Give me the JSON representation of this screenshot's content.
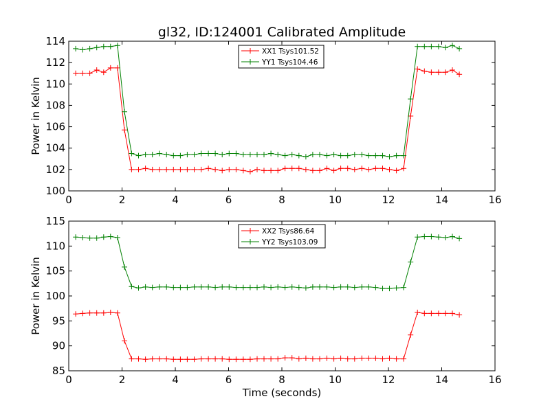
{
  "chart_data": [
    {
      "type": "line",
      "title": "gl32, ID:124001 Calibrated Amplitude",
      "xlabel": "",
      "ylabel": "Power in Kelvin",
      "xlim": [
        0,
        16
      ],
      "ylim": [
        100,
        114
      ],
      "xticks": [
        "0",
        "2",
        "4",
        "6",
        "8",
        "10",
        "12",
        "14",
        "16"
      ],
      "yticks": [
        "100",
        "102",
        "104",
        "106",
        "108",
        "110",
        "112",
        "114"
      ],
      "legend_position": "top-center",
      "grid": false,
      "x": [
        0.26,
        0.52,
        0.79,
        1.05,
        1.31,
        1.57,
        1.83,
        2.09,
        2.36,
        2.62,
        2.88,
        3.14,
        3.4,
        3.67,
        3.93,
        4.19,
        4.45,
        4.71,
        4.97,
        5.24,
        5.5,
        5.76,
        6.02,
        6.28,
        6.55,
        6.81,
        7.07,
        7.33,
        7.59,
        7.85,
        8.12,
        8.38,
        8.64,
        8.9,
        9.16,
        9.42,
        9.69,
        9.95,
        10.21,
        10.47,
        10.73,
        11.0,
        11.26,
        11.52,
        11.78,
        12.04,
        12.3,
        12.57,
        12.83,
        13.09,
        13.35,
        13.61,
        13.88,
        14.14,
        14.4,
        14.66
      ],
      "series": [
        {
          "name": "XX1 Tsys101.52",
          "color": "#ff0000",
          "values": [
            111.0,
            111.0,
            111.0,
            111.3,
            111.1,
            111.5,
            111.5,
            105.7,
            102.0,
            102.0,
            102.1,
            102.0,
            102.0,
            102.0,
            102.0,
            102.0,
            102.0,
            102.0,
            102.0,
            102.1,
            102.0,
            101.9,
            102.0,
            102.0,
            101.9,
            101.8,
            102.0,
            101.9,
            101.9,
            101.9,
            102.1,
            102.1,
            102.1,
            102.0,
            101.9,
            101.9,
            102.1,
            101.9,
            102.1,
            102.1,
            102.0,
            102.1,
            102.0,
            102.1,
            102.1,
            102.0,
            101.9,
            102.1,
            107.0,
            111.4,
            111.2,
            111.1,
            111.1,
            111.1,
            111.3,
            110.9
          ]
        },
        {
          "name": "YY1 Tsys104.46",
          "color": "#008000",
          "values": [
            113.3,
            113.2,
            113.3,
            113.4,
            113.5,
            113.5,
            113.6,
            107.4,
            103.5,
            103.3,
            103.4,
            103.4,
            103.5,
            103.4,
            103.3,
            103.3,
            103.4,
            103.4,
            103.5,
            103.5,
            103.5,
            103.4,
            103.5,
            103.5,
            103.4,
            103.4,
            103.4,
            103.4,
            103.5,
            103.4,
            103.3,
            103.4,
            103.3,
            103.2,
            103.4,
            103.4,
            103.3,
            103.4,
            103.3,
            103.3,
            103.4,
            103.4,
            103.3,
            103.3,
            103.3,
            103.2,
            103.3,
            103.3,
            108.6,
            113.5,
            113.5,
            113.5,
            113.5,
            113.4,
            113.6,
            113.3
          ]
        }
      ]
    },
    {
      "type": "line",
      "title": "",
      "xlabel": "Time (seconds)",
      "ylabel": "Power in Kelvin",
      "xlim": [
        0,
        16
      ],
      "ylim": [
        85,
        115
      ],
      "xticks": [
        "0",
        "2",
        "4",
        "6",
        "8",
        "10",
        "12",
        "14",
        "16"
      ],
      "yticks": [
        "85",
        "90",
        "95",
        "100",
        "105",
        "110",
        "115"
      ],
      "legend_position": "top-center",
      "grid": false,
      "x": [
        0.26,
        0.52,
        0.79,
        1.05,
        1.31,
        1.57,
        1.83,
        2.09,
        2.36,
        2.62,
        2.88,
        3.14,
        3.4,
        3.67,
        3.93,
        4.19,
        4.45,
        4.71,
        4.97,
        5.24,
        5.5,
        5.76,
        6.02,
        6.28,
        6.55,
        6.81,
        7.07,
        7.33,
        7.59,
        7.85,
        8.12,
        8.38,
        8.64,
        8.9,
        9.16,
        9.42,
        9.69,
        9.95,
        10.21,
        10.47,
        10.73,
        11.0,
        11.26,
        11.52,
        11.78,
        12.04,
        12.3,
        12.57,
        12.83,
        13.09,
        13.35,
        13.61,
        13.88,
        14.14,
        14.4,
        14.66
      ],
      "series": [
        {
          "name": "XX2 Tsys86.64",
          "color": "#ff0000",
          "values": [
            96.4,
            96.5,
            96.6,
            96.6,
            96.6,
            96.7,
            96.6,
            91.0,
            87.4,
            87.4,
            87.3,
            87.4,
            87.4,
            87.4,
            87.3,
            87.3,
            87.3,
            87.3,
            87.4,
            87.4,
            87.4,
            87.4,
            87.3,
            87.3,
            87.3,
            87.3,
            87.4,
            87.4,
            87.4,
            87.4,
            87.6,
            87.6,
            87.4,
            87.5,
            87.4,
            87.4,
            87.5,
            87.4,
            87.5,
            87.4,
            87.4,
            87.5,
            87.5,
            87.5,
            87.4,
            87.5,
            87.4,
            87.4,
            92.2,
            96.7,
            96.5,
            96.5,
            96.5,
            96.5,
            96.5,
            96.2
          ]
        },
        {
          "name": "YY2 Tsys103.09",
          "color": "#008000",
          "values": [
            111.8,
            111.7,
            111.6,
            111.6,
            111.8,
            111.9,
            111.7,
            105.8,
            101.9,
            101.6,
            101.8,
            101.7,
            101.8,
            101.8,
            101.7,
            101.7,
            101.7,
            101.8,
            101.8,
            101.8,
            101.7,
            101.8,
            101.8,
            101.7,
            101.7,
            101.7,
            101.7,
            101.8,
            101.7,
            101.8,
            101.7,
            101.8,
            101.7,
            101.6,
            101.8,
            101.8,
            101.8,
            101.7,
            101.8,
            101.8,
            101.7,
            101.8,
            101.8,
            101.7,
            101.5,
            101.5,
            101.6,
            101.7,
            106.8,
            111.8,
            111.9,
            111.9,
            111.8,
            111.7,
            111.9,
            111.5
          ]
        }
      ]
    }
  ]
}
